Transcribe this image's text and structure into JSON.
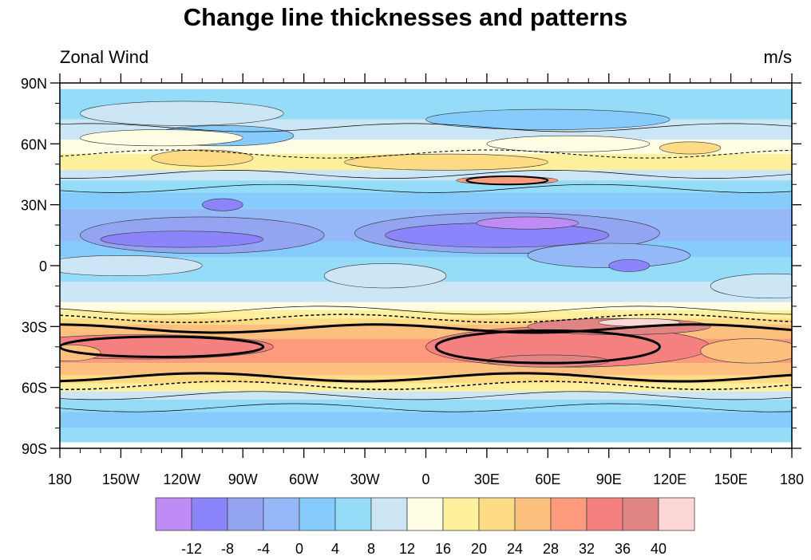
{
  "title": "Change line thicknesses and patterns",
  "left_label": "Zonal Wind",
  "right_label": "m/s",
  "chart_data": {
    "type": "contour-map",
    "variable": "Zonal Wind",
    "units": "m/s",
    "lat_ticks": [
      "90N",
      "60N",
      "30N",
      "0",
      "30S",
      "60S",
      "90S"
    ],
    "lon_ticks": [
      "180",
      "150W",
      "120W",
      "90W",
      "60W",
      "30W",
      "0",
      "30E",
      "60E",
      "90E",
      "120E",
      "150E",
      "180"
    ],
    "contour_levels": [
      "-12",
      "-8",
      "-4",
      "0",
      "4",
      "8",
      "12",
      "16",
      "20",
      "24",
      "28",
      "32",
      "36",
      "40"
    ],
    "fill_colors": [
      "#bf8cf6",
      "#8b84fb",
      "#93a4f0",
      "#94b8f8",
      "#85ccfd",
      "#94dcf8",
      "#cce6f5",
      "#fffde4",
      "#fef09c",
      "#fedc86",
      "#fdc07f",
      "#fd9b7c",
      "#f48080",
      "#e08484",
      "#fdd6d6"
    ],
    "thick_contour_level": "32",
    "dashed_contour_levels": [
      "20",
      "28"
    ]
  }
}
